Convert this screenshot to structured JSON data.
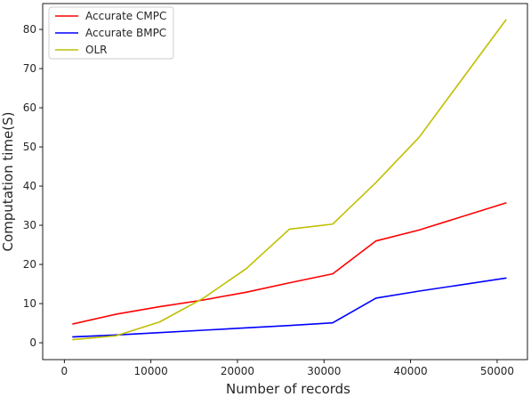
{
  "chart_data": {
    "type": "line",
    "xlabel": "Number of records",
    "ylabel": "Computation time(S)",
    "xlim": [
      -2500,
      53500
    ],
    "ylim": [
      -4.3,
      86.6
    ],
    "xticks": [
      0,
      10000,
      20000,
      30000,
      40000,
      50000
    ],
    "yticks": [
      0,
      10,
      20,
      30,
      40,
      50,
      60,
      70,
      80
    ],
    "x": [
      1000,
      6000,
      11000,
      16000,
      21000,
      26000,
      31000,
      36000,
      41000,
      51000
    ],
    "series": [
      {
        "name": "Accurate CMPC",
        "color": "#ff0000",
        "values": [
          4.8,
          7.3,
          9.2,
          10.9,
          12.9,
          15.3,
          17.6,
          26.0,
          28.8,
          35.7
        ]
      },
      {
        "name": "Accurate BMPC",
        "color": "#0000ff",
        "values": [
          1.5,
          2.0,
          2.6,
          3.2,
          3.8,
          4.4,
          5.1,
          11.4,
          13.2,
          16.5
        ]
      },
      {
        "name": "OLR",
        "color": "#bfbf00",
        "values": [
          0.8,
          1.8,
          5.3,
          11.3,
          18.9,
          29.0,
          30.3,
          40.9,
          52.5,
          82.4
        ]
      }
    ],
    "grid": false,
    "legend_position": "top-left"
  }
}
